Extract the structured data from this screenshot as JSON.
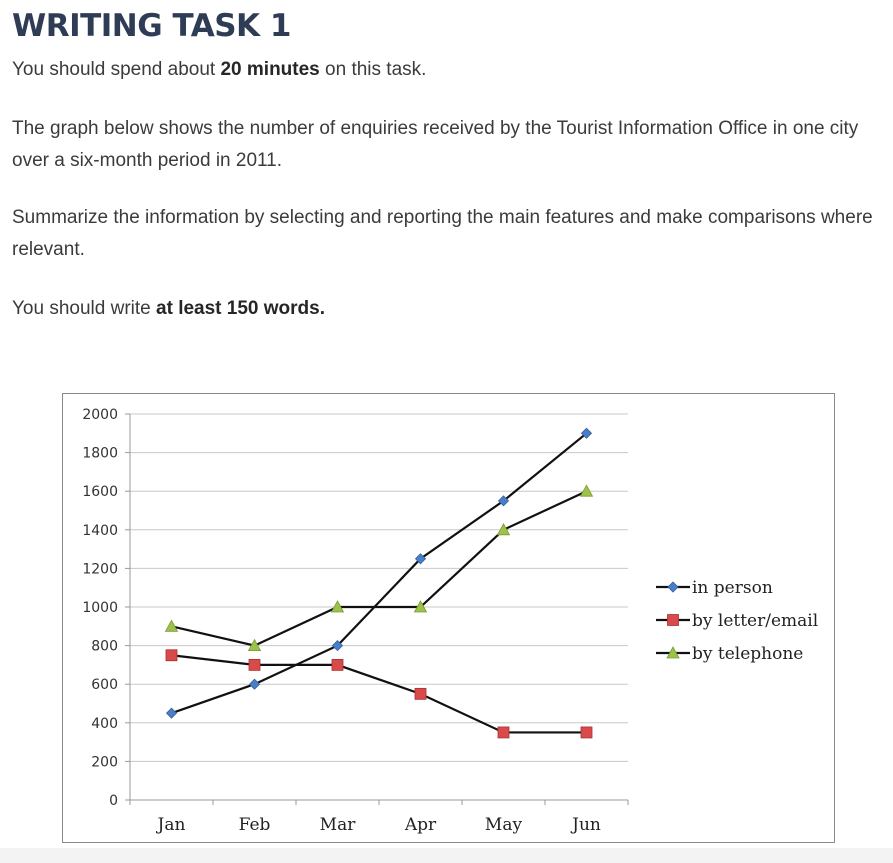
{
  "heading": "WRITING TASK 1",
  "intro": {
    "p1_pre": "You should spend about ",
    "p1_bold": "20 minutes",
    "p1_post": " on this task.",
    "p2": "The graph below shows the number of enquiries received by the Tourist Information Office in one city over a six-month period in 2011.",
    "p3": "Summarize the information by selecting and reporting the main features and make comparisons where relevant.",
    "p4_pre": "You should write ",
    "p4_bold": "at least 150 words."
  },
  "chart_data": {
    "type": "line",
    "categories": [
      "Jan",
      "Feb",
      "Mar",
      "Apr",
      "May",
      "Jun"
    ],
    "series": [
      {
        "name": "in person",
        "values": [
          450,
          600,
          800,
          1250,
          1550,
          1900
        ],
        "color": "#4a7fc8",
        "marker": "diamond"
      },
      {
        "name": "by letter/email",
        "values": [
          750,
          700,
          700,
          550,
          350,
          350
        ],
        "color": "#d94a4a",
        "marker": "square"
      },
      {
        "name": "by telephone",
        "values": [
          900,
          800,
          1000,
          1000,
          1400,
          1600
        ],
        "color": "#9cc24a",
        "marker": "triangle"
      }
    ],
    "ylim": [
      0,
      2000
    ],
    "yticks": [
      0,
      200,
      400,
      600,
      800,
      1000,
      1200,
      1400,
      1600,
      1800,
      2000
    ],
    "line_color": "#111111",
    "grid": true,
    "legend_position": "right",
    "title": "",
    "xlabel": "",
    "ylabel": ""
  }
}
